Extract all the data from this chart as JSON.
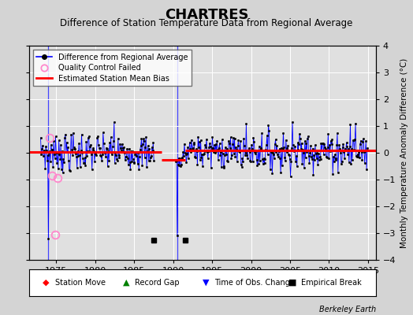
{
  "title": "CHARTRES",
  "subtitle": "Difference of Station Temperature Data from Regional Average",
  "ylabel": "Monthly Temperature Anomaly Difference (°C)",
  "xlim": [
    1971.5,
    2016.0
  ],
  "ylim": [
    -4,
    4
  ],
  "yticks": [
    -4,
    -3,
    -2,
    -1,
    0,
    1,
    2,
    3,
    4
  ],
  "xticks": [
    1975,
    1980,
    1985,
    1990,
    1995,
    2000,
    2005,
    2010,
    2015
  ],
  "bg_color": "#e0e0e0",
  "grid_color": "#ffffff",
  "line_color": "#0000ff",
  "dot_color": "#000000",
  "bias_color": "#ff0000",
  "credit": "Berkeley Earth",
  "vertical_lines": [
    1974.0,
    1990.5
  ],
  "vertical_line_color": "#4444ff",
  "empirical_break_times": [
    1987.5,
    1991.5
  ],
  "empirical_break_y": -3.25,
  "qc_failed_times": [
    1974.2,
    1974.5,
    1974.85,
    1975.2
  ],
  "qc_failed_values": [
    0.55,
    -0.85,
    -3.05,
    -0.95
  ],
  "bias_segments": [
    {
      "x": [
        1971.5,
        1988.5
      ],
      "y": [
        0.02,
        0.02
      ]
    },
    {
      "x": [
        1988.5,
        1991.5
      ],
      "y": [
        -0.27,
        -0.27
      ]
    },
    {
      "x": [
        1991.5,
        2016.0
      ],
      "y": [
        0.08,
        0.08
      ]
    }
  ],
  "seed": 7,
  "years_start": 1973.0,
  "years_end": 2014.9,
  "gap_start": 1987.6,
  "gap_end": 1990.3,
  "spike_1974_val": -3.2,
  "spike_1982_val": 1.15,
  "spike_1982_t": 1982.4,
  "spike_1990_val": -3.1,
  "spike_1990_t": 1990.55,
  "spike_2005_val": 1.15,
  "spike_2005_t": 2005.3,
  "spike_2012_val": 1.05,
  "spike_2012_t": 2012.7,
  "spike_2013_val": 1.1,
  "spike_2013_t": 2013.4
}
